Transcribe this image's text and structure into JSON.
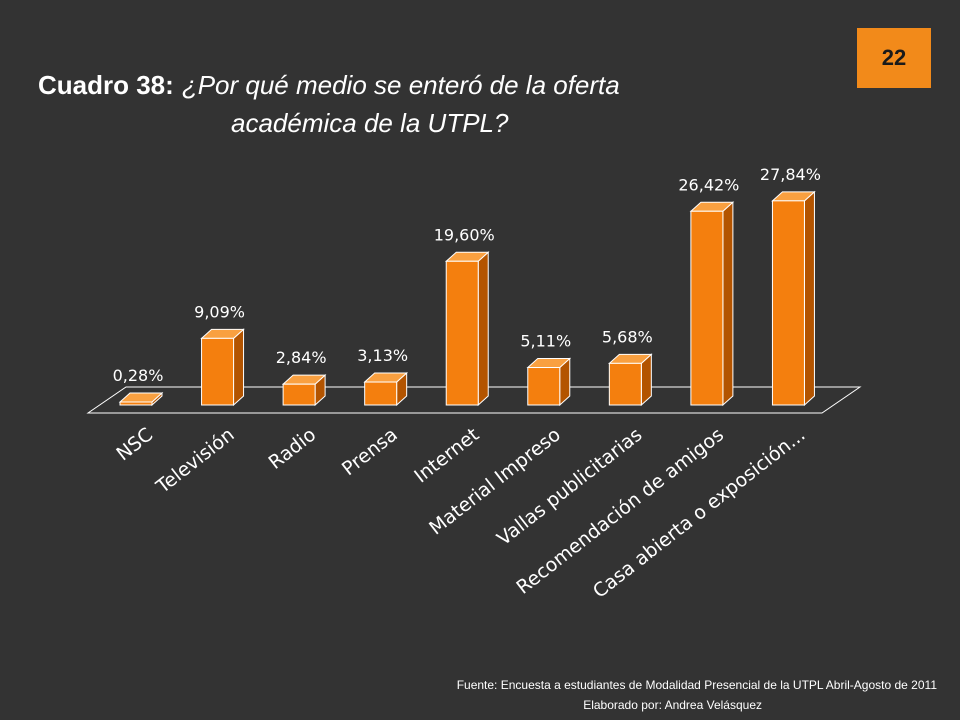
{
  "slide": {
    "number": "22"
  },
  "title": {
    "prefix": "Cuadro 38:",
    "question_line1": "¿Por qué medio se enteró de la oferta",
    "question_line2": "académica de la UTPL?"
  },
  "colors": {
    "background": "#333333",
    "bar_front": "#f47f0e",
    "bar_side": "#b35400",
    "bar_top": "#f9a040",
    "badge": "#f28a1a",
    "text": "#ffffff"
  },
  "chart_data": {
    "type": "bar",
    "style": "3d",
    "categories": [
      "NSC",
      "Televisión",
      "Radio",
      "Prensa",
      "Internet",
      "Material Impreso",
      "Vallas publicitarias",
      "Recomendación de amigos",
      "Casa abierta o exposición..."
    ],
    "values": [
      0.28,
      9.09,
      2.84,
      3.13,
      19.6,
      5.11,
      5.68,
      26.42,
      27.84
    ],
    "data_labels": [
      "0,28%",
      "9,09%",
      "2,84%",
      "3,13%",
      "19,60%",
      "5,11%",
      "5,68%",
      "26,42%",
      "27,84%"
    ],
    "unit": "%",
    "ylim": [
      0,
      30
    ],
    "grid": false,
    "legend": "none"
  },
  "footer": {
    "source": "Fuente: Encuesta a estudiantes de Modalidad Presencial de la UTPL Abril-Agosto de 2011",
    "author": "Elaborado por: Andrea  Velásquez"
  }
}
